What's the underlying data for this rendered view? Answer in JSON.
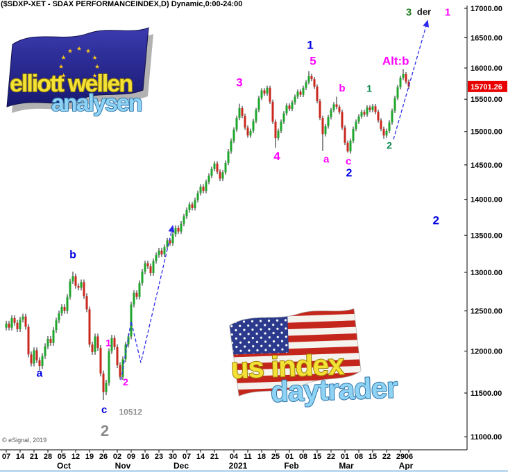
{
  "title": "($SDXP-XET - SDAX PERFORMANCEINDEX,D) Dynamic,0:00-24:00",
  "copyright": "© eSignal, 2019",
  "price_label": {
    "value": "15701.26",
    "bg": "#e80000",
    "fg": "#ffffff"
  },
  "logos": {
    "eu": {
      "line1": "elliott wellen",
      "line2": "analysen"
    },
    "us": {
      "line1": "us index",
      "line2": "daytrader"
    }
  },
  "colors": {
    "up": "#1fa52c",
    "down": "#c9281e",
    "wick": "#1a1a1a",
    "arrow": "#2a2ae8",
    "axis": "#000000",
    "magenta": "#ff00ff",
    "blue": "#0000e0",
    "green": "#0a8a50",
    "gray": "#8a8a8a"
  },
  "chart_data": {
    "type": "candlestick",
    "symbol": "$SDXP-XET",
    "name": "SDAX PERFORMANCEINDEX",
    "timeframe": "D",
    "session": "0:00-24:00",
    "last_price": 15701.26,
    "y_axis": {
      "scale": "log",
      "min": 11000,
      "max": 17000,
      "tick_step": 500,
      "tick_labels": [
        "17000.00",
        "16500.00",
        "16000.00",
        "15500.00",
        "15000.00",
        "14500.00",
        "14000.00",
        "13500.00",
        "13000.00",
        "12500.00",
        "12000.00",
        "11500.00",
        "11000.00"
      ],
      "tick_values": [
        17000,
        16500,
        16000,
        15500,
        15000,
        14500,
        14000,
        13500,
        13000,
        12500,
        12000,
        11500,
        11000
      ]
    },
    "x_axis": {
      "ticks": [
        [
          "07",
          0
        ],
        [
          "14",
          5
        ],
        [
          "21",
          10
        ],
        [
          "28",
          15
        ],
        [
          "05",
          20
        ],
        [
          "12",
          25
        ],
        [
          "19",
          30
        ],
        [
          "26",
          35
        ],
        [
          "02",
          40
        ],
        [
          "09",
          45
        ],
        [
          "16",
          50
        ],
        [
          "23",
          55
        ],
        [
          "30",
          60
        ],
        [
          "07",
          65
        ],
        [
          "14",
          70
        ],
        [
          "21",
          75
        ],
        [
          "04",
          82
        ],
        [
          "11",
          87
        ],
        [
          "18",
          92
        ],
        [
          "25",
          97
        ],
        [
          "01",
          102
        ],
        [
          "08",
          107
        ],
        [
          "15",
          112
        ],
        [
          "22",
          117
        ],
        [
          "01",
          122
        ],
        [
          "08",
          127
        ],
        [
          "15",
          132
        ],
        [
          "22",
          137
        ],
        [
          "29",
          142
        ],
        [
          "06",
          145
        ]
      ],
      "months": [
        [
          "Oct",
          20.75
        ],
        [
          "Nov",
          42
        ],
        [
          "Dec",
          63
        ],
        [
          "2021",
          83.5
        ],
        [
          "Feb",
          102.75
        ],
        [
          "Mar",
          122.5
        ],
        [
          "Apr",
          144
        ]
      ]
    },
    "first_open": 12290,
    "closes": [
      12340,
      12290,
      12410,
      12350,
      12270,
      12390,
      12430,
      12300,
      11960,
      11850,
      12010,
      11890,
      11820,
      11940,
      12060,
      12150,
      12100,
      12260,
      12380,
      12470,
      12550,
      12500,
      12680,
      12880,
      12950,
      12820,
      12800,
      12870,
      12690,
      12520,
      12080,
      11990,
      12180,
      12040,
      11730,
      11510,
      11620,
      12000,
      12160,
      12050,
      11830,
      11690,
      11900,
      12080,
      12180,
      12580,
      12730,
      12680,
      12860,
      13010,
      13120,
      13080,
      12990,
      13150,
      13230,
      13290,
      13240,
      13340,
      13430,
      13390,
      13510,
      13600,
      13550,
      13660,
      13760,
      13850,
      13930,
      13880,
      13990,
      14090,
      14180,
      14120,
      14250,
      14340,
      14440,
      14520,
      14400,
      14300,
      14390,
      14530,
      14700,
      14860,
      15030,
      15210,
      15360,
      15240,
      15060,
      14940,
      15010,
      15160,
      15330,
      15520,
      15640,
      15590,
      15680,
      15460,
      15150,
      14900,
      15010,
      15150,
      15280,
      15400,
      15350,
      15450,
      15540,
      15620,
      15570,
      15680,
      15770,
      15870,
      15820,
      15700,
      15470,
      15210,
      14960,
      15080,
      15220,
      15330,
      15420,
      15380,
      15300,
      15060,
      14830,
      14700,
      14860,
      15040,
      15150,
      15230,
      15300,
      15260,
      15370,
      15330,
      15390,
      15300,
      15170,
      15040,
      14940,
      15010,
      15140,
      15320,
      15520,
      15690,
      15840,
      15900,
      15780,
      15701.26
    ],
    "wick_overrides": {
      "12": {
        "low": 11765
      },
      "24": {
        "high": 13010
      },
      "35": {
        "low": 11420
      },
      "38": {
        "high": 12200
      },
      "41": {
        "low": 11660
      },
      "84": {
        "high": 15430
      },
      "97": {
        "low": 14755
      },
      "109": {
        "high": 15950
      },
      "114": {
        "low": 14705
      },
      "119": {
        "high": 15540
      },
      "123": {
        "low": 14680
      },
      "136": {
        "low": 14890
      },
      "143": {
        "high": 15980
      }
    },
    "annotations": [
      {
        "text": "3",
        "color": "#1a7a1a",
        "idx": 145,
        "price": 16940,
        "size": 15
      },
      {
        "text": "der",
        "color": "#111111",
        "idx": 150.5,
        "price": 16940,
        "size": 13
      },
      {
        "text": "1",
        "color": "#ff00ff",
        "idx": 159,
        "price": 16940,
        "size": 15
      },
      {
        "text": "1",
        "color": "#0000e0",
        "idx": 109.5,
        "price": 16380,
        "size": 17
      },
      {
        "text": "5",
        "color": "#ff00ff",
        "idx": 110.5,
        "price": 16120,
        "size": 17
      },
      {
        "text": "Alt:b",
        "color": "#ff00ff",
        "idx": 140.3,
        "price": 16120,
        "size": 17
      },
      {
        "text": "3",
        "color": "#ff00ff",
        "idx": 84,
        "price": 15770,
        "size": 17
      },
      {
        "text": "b",
        "color": "#ff00ff",
        "idx": 121,
        "price": 15680,
        "size": 15
      },
      {
        "text": "1",
        "color": "#0a8a50",
        "idx": 130.8,
        "price": 15670,
        "size": 14
      },
      {
        "text": "2",
        "color": "#0a8a50",
        "idx": 138,
        "price": 14790,
        "size": 14
      },
      {
        "text": "4",
        "color": "#ff00ff",
        "idx": 97.5,
        "price": 14630,
        "size": 17
      },
      {
        "text": "a",
        "color": "#ff00ff",
        "idx": 115.3,
        "price": 14590,
        "size": 15
      },
      {
        "text": "c",
        "color": "#ff00ff",
        "idx": 123.3,
        "price": 14560,
        "size": 15
      },
      {
        "text": "2",
        "color": "#0000e0",
        "idx": 123.5,
        "price": 14390,
        "size": 16
      },
      {
        "text": "2",
        "color": "#0000e0",
        "idx": 154.8,
        "price": 13710,
        "size": 17
      },
      {
        "text": "b",
        "color": "#0000e0",
        "idx": 24,
        "price": 13240,
        "size": 16
      },
      {
        "text": "a",
        "color": "#0000e0",
        "idx": 12,
        "price": 11740,
        "size": 16
      },
      {
        "text": "1",
        "color": "#ff00ff",
        "idx": 36.8,
        "price": 12100,
        "size": 14
      },
      {
        "text": "2",
        "color": "#ff00ff",
        "idx": 43,
        "price": 11630,
        "size": 14
      },
      {
        "text": "c",
        "color": "#0000e0",
        "idx": 35.3,
        "price": 11310,
        "size": 15
      },
      {
        "text": "10512",
        "color": "#909090",
        "idx": 44.8,
        "price": 11280,
        "size": 12
      },
      {
        "text": "2",
        "color": "#8a8a8a",
        "idx": 35.5,
        "price": 11070,
        "size": 22
      }
    ],
    "arrows": [
      {
        "points": [
          [
            41.3,
            11650
          ],
          [
            45,
            12370
          ],
          [
            48.5,
            11860
          ],
          [
            60,
            13630
          ]
        ]
      },
      {
        "points": [
          [
            139.5,
            14880
          ],
          [
            151.8,
            16790
          ]
        ]
      }
    ]
  }
}
